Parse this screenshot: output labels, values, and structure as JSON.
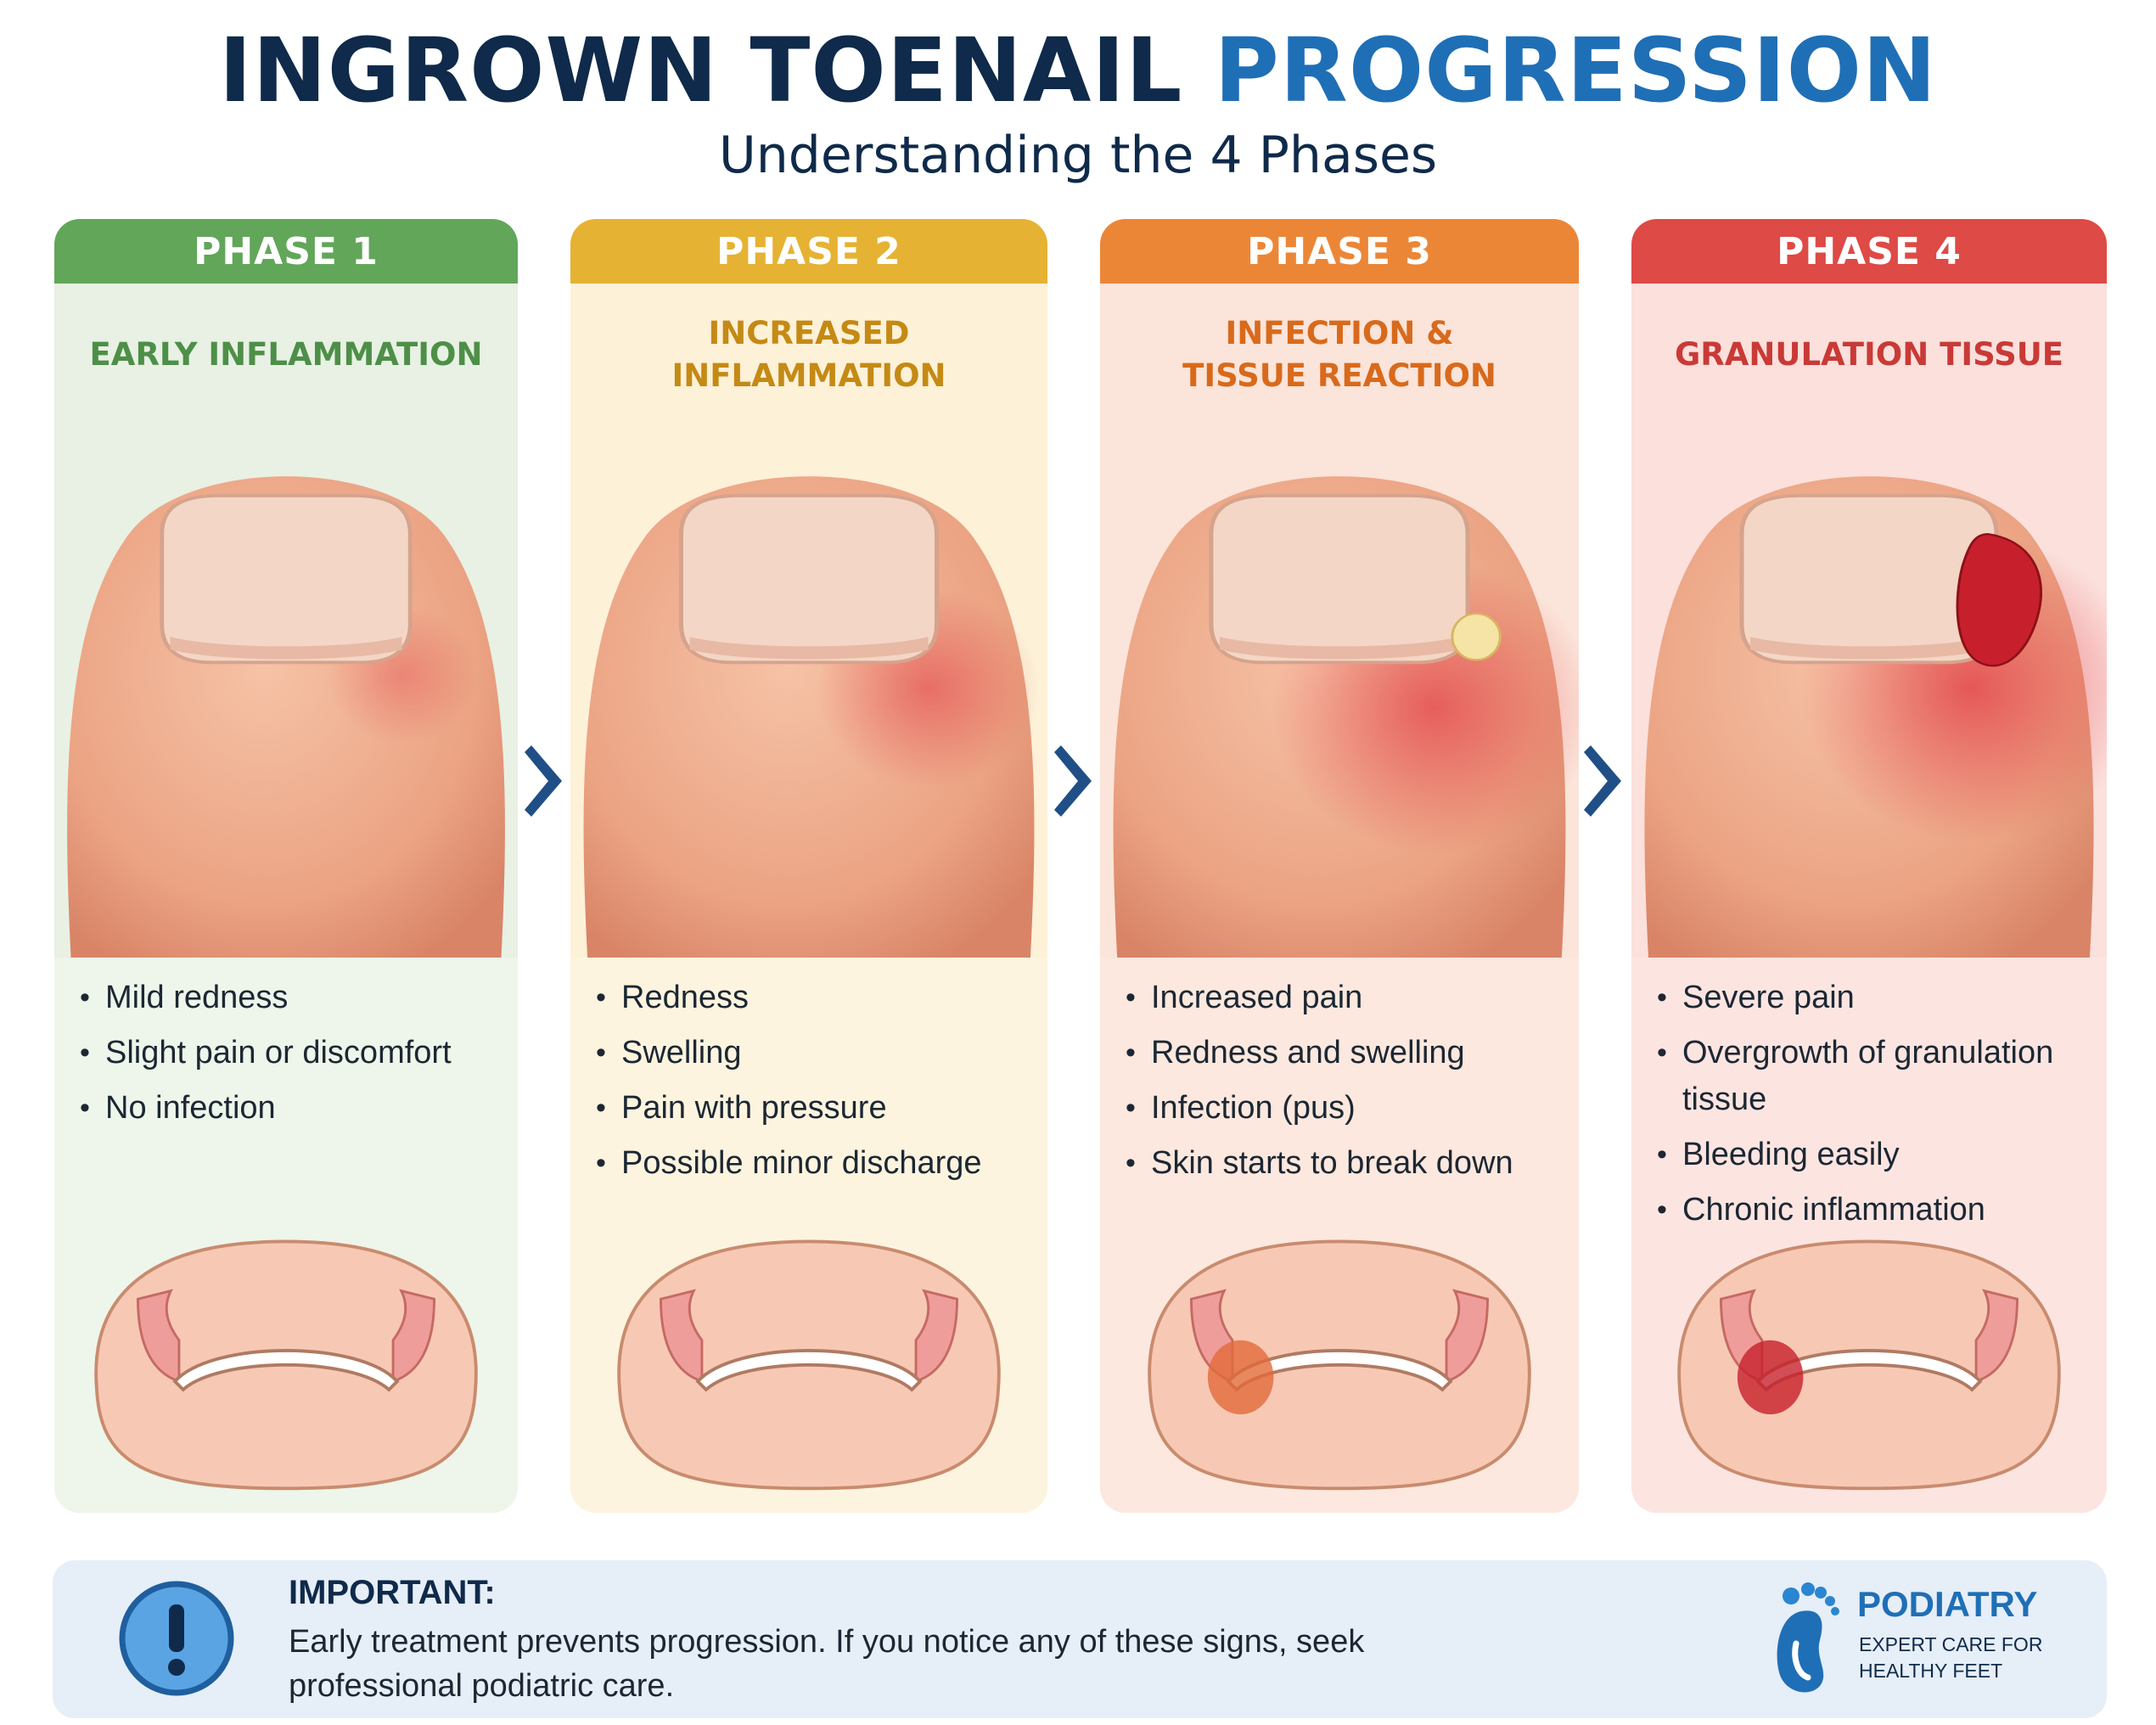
{
  "header": {
    "title_part1": "INGROWN TOENAIL",
    "title_part2": "PROGRESSION",
    "subtitle": "Understanding the 4 Phases"
  },
  "colors": {
    "title": "#0f2a4a",
    "title_accent": "#1f6fb6",
    "arrow": "#1f4f86"
  },
  "phases": [
    {
      "label": "PHASE 1",
      "stage": "EARLY INFLAMMATION",
      "symptoms": [
        "Mild redness",
        "Slight pain or discomfort",
        "No infection"
      ],
      "header_color": "#62a65a",
      "stage_color": "#4e8f48",
      "card_color": "#e8f1e4",
      "symptom_bg": "#eef5ea"
    },
    {
      "label": "PHASE 2",
      "stage": "INCREASED INFLAMMATION",
      "symptoms": [
        "Redness",
        "Swelling",
        "Pain with pressure",
        "Possible minor discharge"
      ],
      "header_color": "#e6b233",
      "stage_color": "#c48a14",
      "card_color": "#fdf1d8",
      "symptom_bg": "#fdf4df"
    },
    {
      "label": "PHASE 3",
      "stage": "INFECTION &\nTISSUE REACTION",
      "symptoms": [
        "Increased pain",
        "Redness and swelling",
        "Infection (pus)",
        "Skin starts to break down"
      ],
      "header_color": "#ec8637",
      "stage_color": "#d86a1c",
      "card_color": "#fbe4d9",
      "symptom_bg": "#fce8de"
    },
    {
      "label": "PHASE 4",
      "stage": "GRANULATION TISSUE",
      "symptoms": [
        "Severe pain",
        "Overgrowth of granulation tissue",
        "Bleeding easily",
        "Chronic inflammation"
      ],
      "header_color": "#de4a45",
      "stage_color": "#c93a36",
      "card_color": "#fbe0dc",
      "symptom_bg": "#fce5e1"
    }
  ],
  "notice": {
    "heading": "IMPORTANT:",
    "body": "Early treatment prevents progression. If you notice any of these signs, seek professional podiatric care.",
    "icon": "exclamation-icon"
  },
  "brand": {
    "name": "PODIATRY",
    "tagline": "EXPERT CARE FOR\nHEALTHY FEET",
    "icon": "foot-icon"
  }
}
